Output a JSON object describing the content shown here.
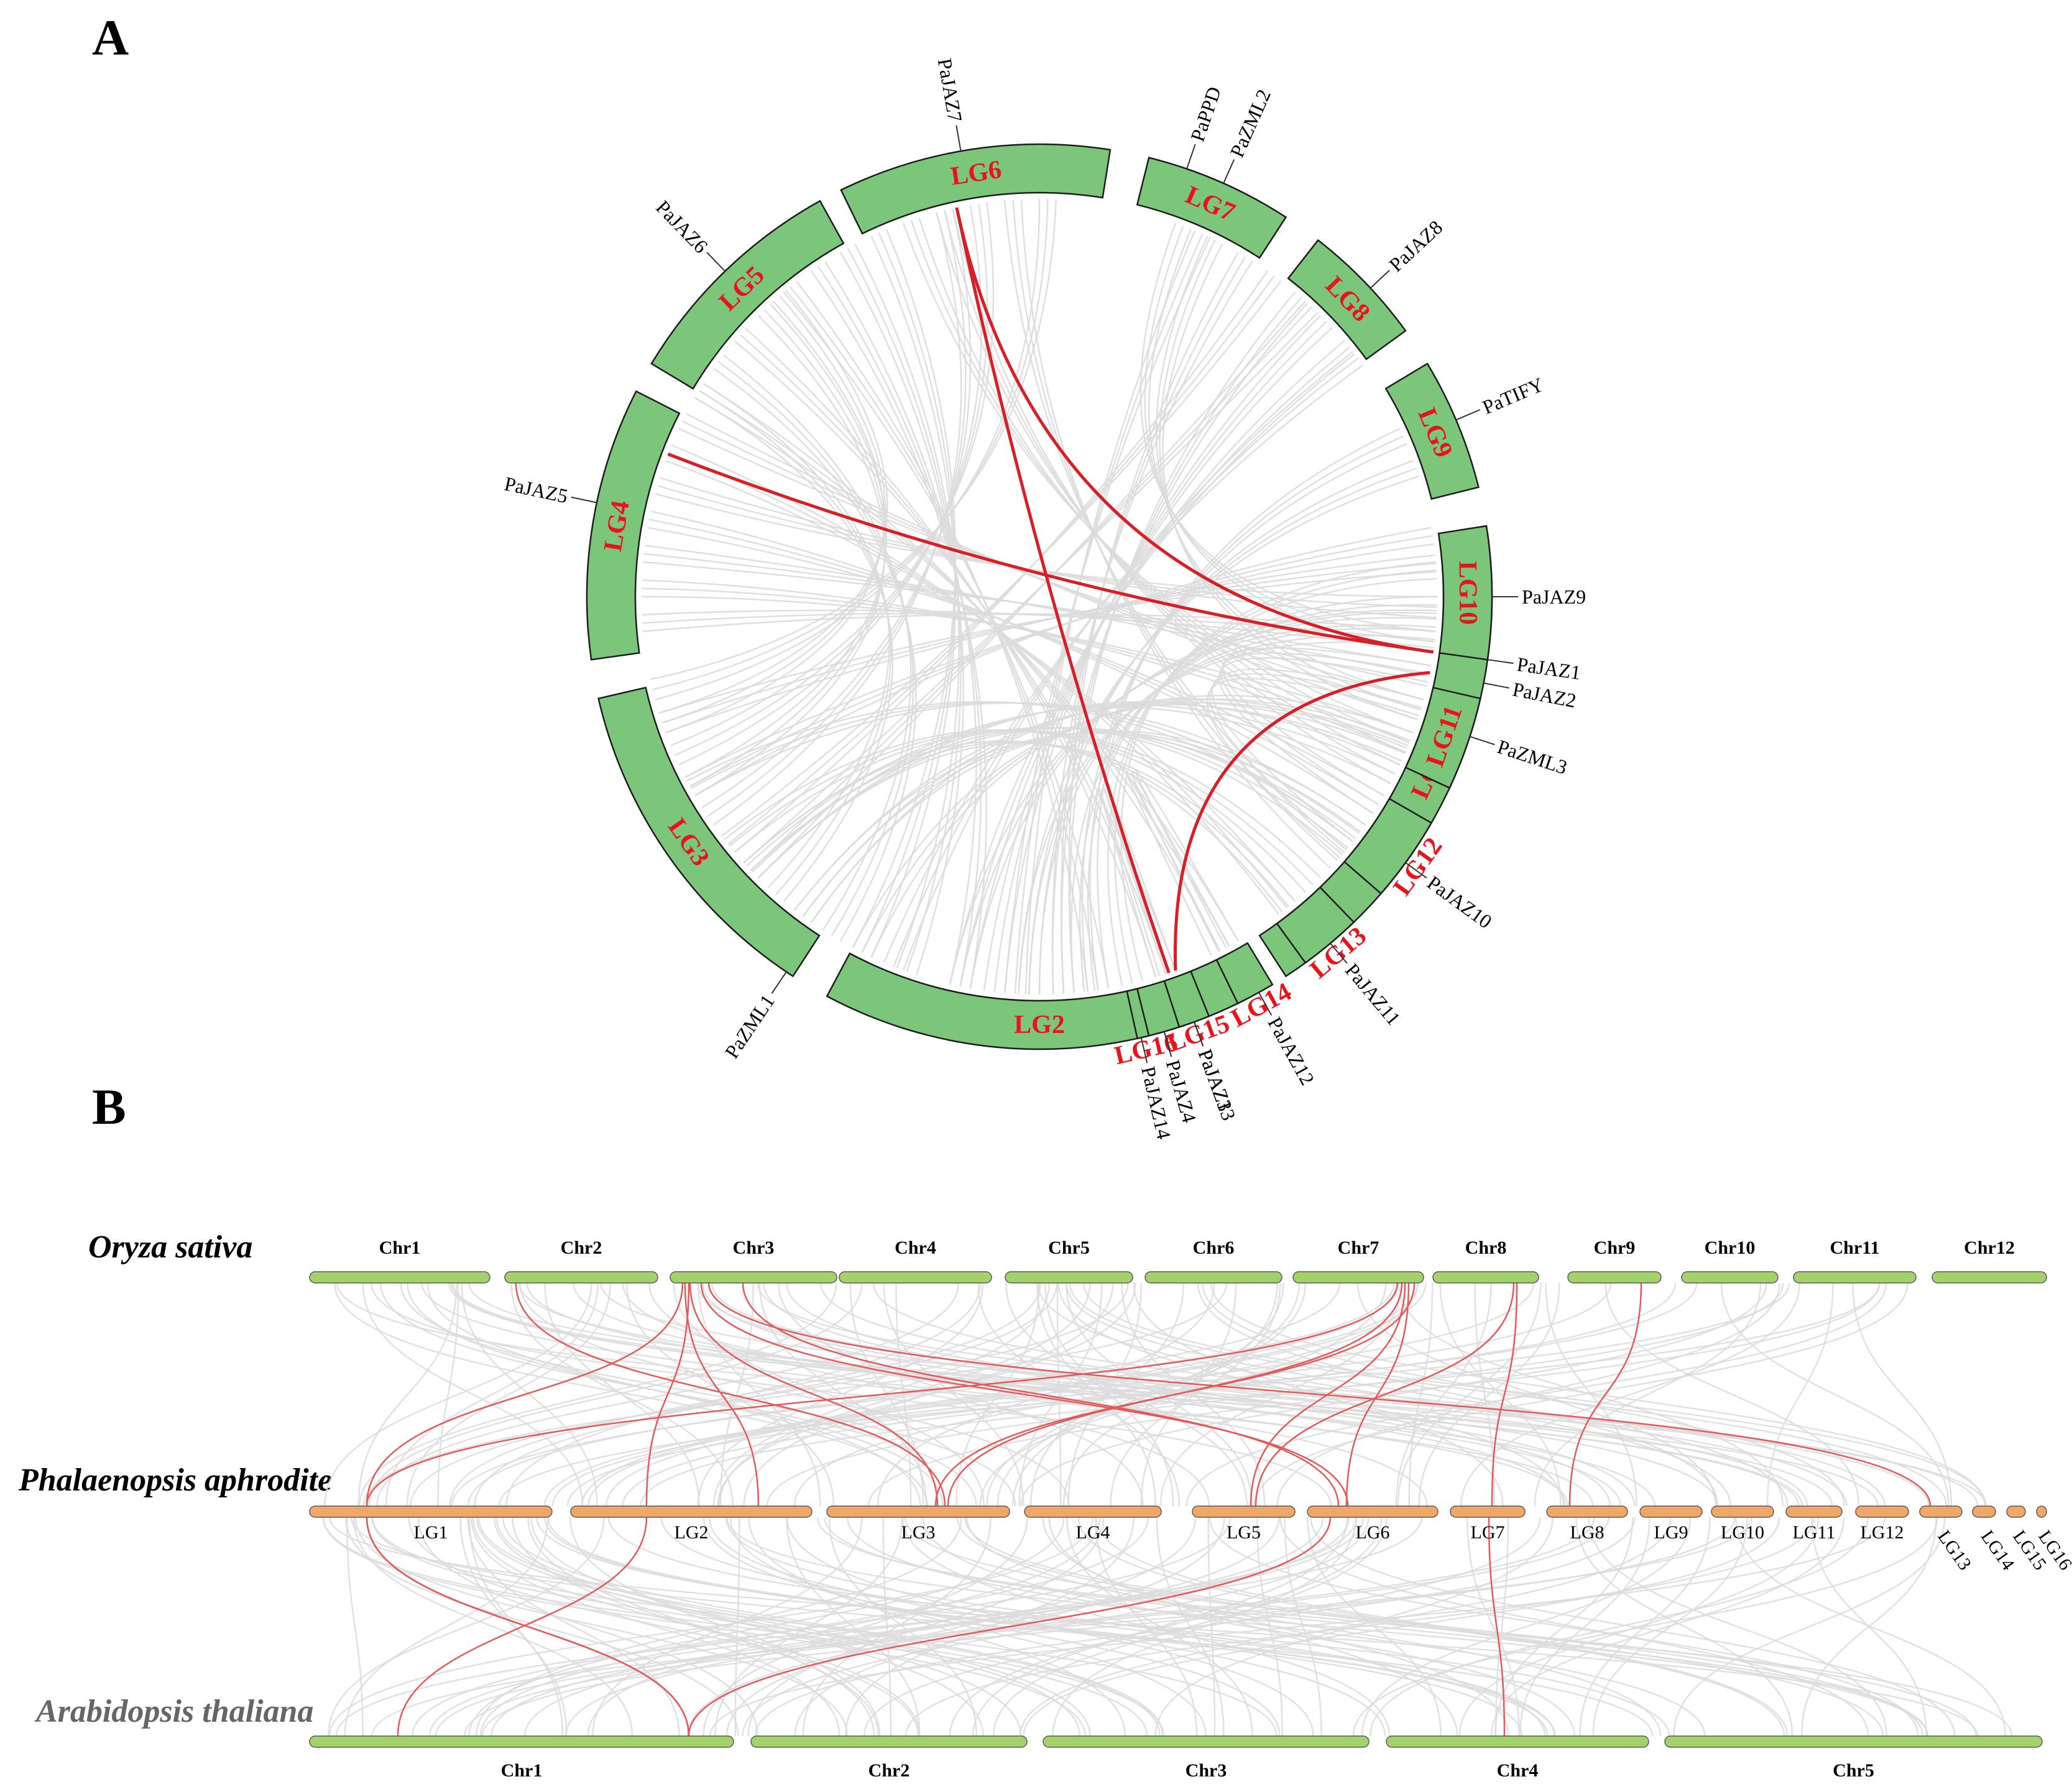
{
  "panel_a": {
    "label": "A",
    "segments": [
      "LG1",
      "LG2",
      "LG3",
      "LG4",
      "LG5",
      "LG6",
      "LG7",
      "LG8",
      "LG9",
      "LG10",
      "LG11",
      "LG12",
      "LG13",
      "LG14",
      "LG15",
      "LG16"
    ],
    "genes": [
      {
        "name": "PaJAZ1",
        "segment": "LG1"
      },
      {
        "name": "PaJAZ2",
        "segment": "LG1"
      },
      {
        "name": "PaJAZ3",
        "segment": "LG2"
      },
      {
        "name": "PaJAZ4",
        "segment": "LG2"
      },
      {
        "name": "PaZML1",
        "segment": "LG3"
      },
      {
        "name": "PaJAZ5",
        "segment": "LG4"
      },
      {
        "name": "PaJAZ6",
        "segment": "LG5"
      },
      {
        "name": "PaJAZ7",
        "segment": "LG6"
      },
      {
        "name": "PaPPD",
        "segment": "LG7"
      },
      {
        "name": "PaZML2",
        "segment": "LG7"
      },
      {
        "name": "PaJAZ8",
        "segment": "LG8"
      },
      {
        "name": "PaTIFY",
        "segment": "LG9"
      },
      {
        "name": "PaJAZ9",
        "segment": "LG10"
      },
      {
        "name": "PaZML3",
        "segment": "LG11"
      },
      {
        "name": "PaJAZ10",
        "segment": "LG12"
      },
      {
        "name": "PaJAZ11",
        "segment": "LG13"
      },
      {
        "name": "PaJAZ12",
        "segment": "LG14"
      },
      {
        "name": "PaJAZ13",
        "segment": "LG15"
      },
      {
        "name": "PaJAZ14",
        "segment": "LG16"
      }
    ],
    "duplicated_pairs": [
      [
        "PaJAZ7",
        "PaJAZ1"
      ],
      [
        "PaJAZ7",
        "PaJAZ4"
      ],
      [
        "PaJAZ5",
        "PaJAZ1"
      ],
      [
        "PaJAZ3",
        "PaJAZ2"
      ]
    ]
  },
  "panel_b": {
    "label": "B",
    "species": {
      "top": "Oryza sativa",
      "middle": "Phalaenopsis aphrodite",
      "bottom": "Arabidopsis thaliana"
    },
    "oryza_chromosomes": [
      "Chr1",
      "Chr2",
      "Chr3",
      "Chr4",
      "Chr5",
      "Chr6",
      "Chr7",
      "Chr8",
      "Chr9",
      "Chr10",
      "Chr11",
      "Chr12"
    ],
    "phalaenopsis_groups": [
      "LG1",
      "LG2",
      "LG3",
      "LG4",
      "LG5",
      "LG6",
      "LG7",
      "LG8",
      "LG9",
      "LG10",
      "LG11",
      "LG12",
      "LG13",
      "LG14",
      "LG15",
      "LG16"
    ],
    "arabidopsis_chromosomes": [
      "Chr1",
      "Chr2",
      "Chr3",
      "Chr4",
      "Chr5"
    ],
    "colors": {
      "oryza_bar": "#a3d26a",
      "phalaenopsis_bar": "#f0a868",
      "arabidopsis_bar": "#a3d26a",
      "syntenic_pair": "#e25a5a",
      "background_collinearity": "#dcdcdc",
      "segment_fill": "#7bc67b",
      "segment_label": "#e8141c"
    }
  }
}
